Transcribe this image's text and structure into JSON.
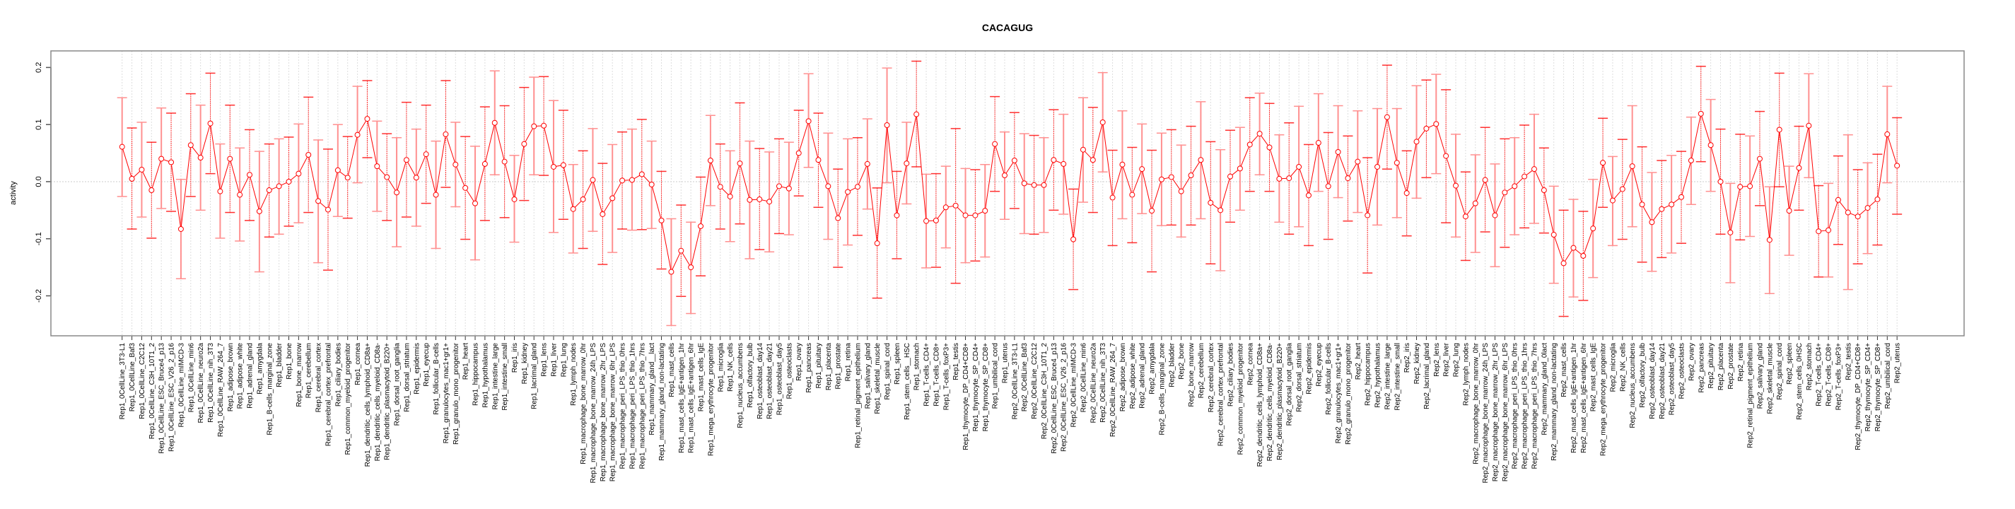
{
  "chart_data": {
    "type": "line",
    "title": "CACAGUG",
    "xlabel": "",
    "ylabel": "activity",
    "ylim": [
      -0.27,
      0.229
    ],
    "yticks": [
      -0.2,
      -0.1,
      0.0,
      0.1,
      0.2
    ],
    "ytick_labels": [
      "-0.2",
      "-0.1",
      "0.0",
      "0.1",
      "0.2"
    ],
    "grid": true,
    "series_color": "#ff0000",
    "categories": [
      "Rep1_0CellLine_3T3-L1",
      "Rep1_0CellLine_Baf3",
      "Rep1_0CellLine_C2C12",
      "Rep1_0CellLine_C3H_10T1_2",
      "Rep1_0CellLine_ESC_Bruce4_p13",
      "Rep1_0CellLine_ESC_V26_2_p16",
      "Rep1_0CellLine_mIMCD-3",
      "Rep1_0CellLine_min6",
      "Rep1_0CellLine_neuro2a",
      "Rep1_0CellLine_nih_3T3",
      "Rep1_0CellLine_RAW_264_7",
      "Rep1_adipose_brown",
      "Rep1_adipose_white",
      "Rep1_adrenal_gland",
      "Rep1_amygdala",
      "Rep1_B-cells_marginal_zone",
      "Rep1_bladder",
      "Rep1_bone",
      "Rep1_bone_marrow",
      "Rep1_cerebellum",
      "Rep1_cerebral_cortex",
      "Rep1_cerebral_cortex_prefrontal",
      "Rep1_ciliary_bodies",
      "Rep1_common_myeloid_progenitor",
      "Rep1_cornea",
      "Rep1_dendritic_cells_lymphoid_CD8a+",
      "Rep1_dendritic_cells_myeloid_CD8a-",
      "Rep1_dendritic_plasmacytoid_B220+",
      "Rep1_dorsal_root_ganglia",
      "Rep1_dorsal_striatum",
      "Rep1_epidermis",
      "Rep1_eyecup",
      "Rep1_follicular_B-cells",
      "Rep1_granulocytes_mac1+gr1+",
      "Rep1_granulo_mono_progenitor",
      "Rep1_heart",
      "Rep1_hippocampus",
      "Rep1_hypothalamus",
      "Rep1_intestine_large",
      "Rep1_intestine_small",
      "Rep1_iris",
      "Rep1_kidney",
      "Rep1_lacrimal_gland",
      "Rep1_lens",
      "Rep1_liver",
      "Rep1_lung",
      "Rep1_lymph_nodes",
      "Rep1_macrophage_bone_marrow_0hr",
      "Rep1_macrophage_bone_marrow_24h_LPS",
      "Rep1_macrophage_bone_marrow_2hr_LPS",
      "Rep1_macrophage_bone_marrow_6hr_LPS",
      "Rep1_macrophage_peri_LPS_thio_0hrs",
      "Rep1_macrophage_peri_LPS_thio_1hrs",
      "Rep1_macrophage_peri_LPS_thio_7hrs",
      "Rep1_mammary_gland__lact",
      "Rep1_mammary_gland_non-lactating",
      "Rep1_mast_cells",
      "Rep1_mast_cells_IgE+antigen_1hr",
      "Rep1_mast_cells_IgE+antigen_6hr",
      "Rep1_mast_cells_IgE",
      "Rep1_mega_erythrocyte_progenitor",
      "Rep1_microglia",
      "Rep1_NK_cells",
      "Rep1_nucleus_accumbens",
      "Rep1_olfactory_bulb",
      "Rep1_osteoblast_day14",
      "Rep1_osteoblast_day21",
      "Rep1_osteoblast_day5",
      "Rep1_osteoclasts",
      "Rep1_ovary",
      "Rep1_pancreas",
      "Rep1_pituitary",
      "Rep1_placenta",
      "Rep1_prostate",
      "Rep1_retina",
      "Rep1_retinal_pigment_epithelium",
      "Rep1_salivary_gland",
      "Rep1_skeletal_muscle",
      "Rep1_spinal_cord",
      "Rep1_spleen",
      "Rep1_stem_cells__HSC",
      "Rep1_stomach",
      "Rep1_T-cells_CD4+",
      "Rep1_T-cells_CD8+",
      "Rep1_T-cells_foxP3+",
      "Rep1_testis",
      "Rep1_thymocyte_DP_CD4+CD8+",
      "Rep1_thymocyte_SP_CD4+",
      "Rep1_thymocyte_SP_CD8+",
      "Rep1_umbilical_cord",
      "Rep1_uterus",
      "Rep2_0CellLine_3T3-L1",
      "Rep2_0CellLine_Baf3",
      "Rep2_0CellLine_C2C12",
      "Rep2_0CellLine_C3H_10T1_2",
      "Rep2_0CellLine_ESC_Bruce4_p13",
      "Rep2_0CellLine_ESC_V26_2_p16",
      "Rep2_0CellLine_mIMCD-3",
      "Rep2_0CellLine_min6",
      "Rep2_0CellLine_neuro2a",
      "Rep2_0CellLine_nih_3T3",
      "Rep2_0CellLine_RAW_264_7",
      "Rep2_adipose_brown",
      "Rep2_adipose_white",
      "Rep2_adrenal_gland",
      "Rep2_amygdala",
      "Rep2_B-cells_marginal_zone",
      "Rep2_bladder",
      "Rep2_bone",
      "Rep2_bone_marrow",
      "Rep2_cerebellum",
      "Rep2_cerebral_cortex",
      "Rep2_cerebral_cortex_prefrontal",
      "Rep2_ciliary_bodies",
      "Rep2_common_myeloid_progenitor",
      "Rep2_cornea",
      "Rep2_dendritic_cells_lymphoid_CD8a+",
      "Rep2_dendritic_cells_myeloid_CD8a-",
      "Rep2_dendritic_plasmacytoid_B220+",
      "Rep2_dorsal_root_ganglia",
      "Rep2_dorsal_striatum",
      "Rep2_epidermis",
      "Rep2_eyecup",
      "Rep2_follicular_B-cells",
      "Rep2_granulocytes_mac1+gr1+",
      "Rep2_granulo_mono_progenitor",
      "Rep2_heart",
      "Rep2_hippocampus",
      "Rep2_hypothalamus",
      "Rep2_intestine_large",
      "Rep2_intestine_small",
      "Rep2_iris",
      "Rep2_kidney",
      "Rep2_lacrimal_gland",
      "Rep2_lens",
      "Rep2_liver",
      "Rep2_lung",
      "Rep2_lymph_nodes",
      "Rep2_macrophage_bone_marrow_0hr",
      "Rep2_macrophage_bone_marrow_24h_LPS",
      "Rep2_macrophage_bone_marrow_2hr_LPS",
      "Rep2_macrophage_bone_marrow_6hr_LPS",
      "Rep2_macrophage_peri_LPS_thio_0hrs",
      "Rep2_macrophage_peri_LPS_thio_1hrs",
      "Rep2_macrophage_peri_LPS_thio_7hrs",
      "Rep2_mammary_gland_0lact",
      "Rep2_mammary_gland_non-lactating",
      "Rep2_mast_cells",
      "Rep2_mast_cells_IgE+antigen_1hr",
      "Rep2_mast_cells_IgE+antigen_6hr",
      "Rep2_mast_cells_IgE",
      "Rep2_mega_erythrocyte_progenitor",
      "Rep2_microglia",
      "Rep2_NK_cells",
      "Rep2_nucleus_accumbens",
      "Rep2_olfactory_bulb",
      "Rep2_osteoblast_day14",
      "Rep2_osteoblast_day21",
      "Rep2_osteoblast_day5",
      "Rep2_osteoclasts",
      "Rep2_ovary",
      "Rep2_pancreas",
      "Rep2_pituitary",
      "Rep2_placenta",
      "Rep2_prostate",
      "Rep2_retina",
      "Rep2_retinal_pigment_epithelium",
      "Rep2_salivary_gland",
      "Rep2_skeletal_muscle",
      "Rep2_spinal_cord",
      "Rep2_spleen",
      "Rep2_stem_cells_0HSC",
      "Rep2_stomach",
      "Rep2_T-cells_CD4+",
      "Rep2_T-cells_CD8+",
      "Rep2_T-cells_foxP3+",
      "Rep2_testis",
      "Rep2_thymocyte_DP_CD4+CD8+",
      "Rep2_thymocyte_SP_CD4+",
      "Rep2_thymocyte_SP_CD8+",
      "Rep2_umbilical_cord",
      "Rep2_uterus"
    ],
    "values": [
      0.061,
      0.005,
      0.021,
      -0.015,
      0.04,
      0.034,
      -0.083,
      0.064,
      0.042,
      0.102,
      -0.017,
      0.04,
      -0.023,
      0.012,
      -0.052,
      -0.015,
      -0.008,
      0.0,
      0.014,
      0.047,
      -0.034,
      -0.049,
      0.02,
      0.007,
      0.082,
      0.11,
      0.027,
      0.008,
      -0.019,
      0.038,
      0.007,
      0.048,
      -0.023,
      0.083,
      0.03,
      -0.011,
      -0.038,
      0.031,
      0.103,
      0.035,
      -0.031,
      0.066,
      0.097,
      0.098,
      0.026,
      0.029,
      -0.048,
      -0.031,
      0.003,
      -0.057,
      -0.029,
      0.002,
      0.003,
      0.013,
      -0.005,
      -0.068,
      -0.158,
      -0.121,
      -0.15,
      -0.078,
      0.037,
      -0.009,
      -0.026,
      0.032,
      -0.032,
      -0.031,
      -0.035,
      -0.008,
      -0.012,
      0.05,
      0.106,
      0.038,
      -0.008,
      -0.064,
      -0.018,
      -0.009,
      0.031,
      -0.108,
      0.099,
      -0.059,
      0.032,
      0.118,
      -0.069,
      -0.068,
      -0.045,
      -0.042,
      -0.059,
      -0.059,
      -0.051,
      0.066,
      0.011,
      0.037,
      -0.003,
      -0.006,
      -0.006,
      0.038,
      0.031,
      -0.101,
      0.056,
      0.038,
      0.104,
      -0.028,
      0.03,
      -0.023,
      0.022,
      -0.051,
      0.004,
      0.008,
      -0.017,
      0.011,
      0.038,
      -0.037,
      -0.05,
      0.009,
      0.023,
      0.065,
      0.084,
      0.06,
      0.005,
      0.006,
      0.026,
      -0.024,
      0.068,
      -0.008,
      0.052,
      0.006,
      0.035,
      -0.059,
      0.026,
      0.113,
      0.033,
      -0.02,
      0.07,
      0.093,
      0.101,
      0.045,
      -0.007,
      -0.061,
      -0.038,
      0.003,
      -0.059,
      -0.019,
      -0.008,
      0.009,
      0.022,
      -0.015,
      -0.093,
      -0.143,
      -0.116,
      -0.13,
      -0.082,
      0.033,
      -0.033,
      -0.013,
      0.027,
      -0.04,
      -0.071,
      -0.048,
      -0.04,
      -0.027,
      0.037,
      0.119,
      0.064,
      0.0,
      -0.089,
      -0.009,
      -0.008,
      0.04,
      -0.102,
      0.091,
      -0.051,
      0.024,
      0.098,
      -0.087,
      -0.085,
      -0.032,
      -0.054,
      -0.061,
      -0.046,
      -0.031,
      0.083,
      0.028
    ],
    "upper": [
      0.147,
      0.094,
      0.104,
      0.069,
      0.129,
      0.12,
      0.004,
      0.154,
      0.134,
      0.19,
      0.066,
      0.134,
      0.059,
      0.091,
      0.053,
      0.066,
      0.075,
      0.078,
      0.101,
      0.148,
      0.073,
      0.057,
      0.1,
      0.079,
      0.167,
      0.177,
      0.106,
      0.084,
      0.077,
      0.139,
      0.092,
      0.134,
      0.071,
      0.177,
      0.104,
      0.079,
      0.062,
      0.131,
      0.194,
      0.133,
      0.046,
      0.165,
      0.183,
      0.184,
      0.142,
      0.125,
      0.03,
      0.054,
      0.093,
      0.032,
      0.065,
      0.087,
      0.092,
      0.109,
      0.071,
      0.018,
      -0.065,
      -0.041,
      -0.071,
      0.008,
      0.116,
      0.066,
      0.054,
      0.138,
      0.071,
      0.058,
      0.052,
      0.075,
      0.069,
      0.125,
      0.189,
      0.12,
      0.085,
      0.022,
      0.075,
      0.077,
      0.11,
      -0.011,
      0.199,
      0.018,
      0.104,
      0.211,
      0.013,
      0.014,
      0.027,
      0.093,
      0.023,
      0.021,
      0.03,
      0.149,
      0.087,
      0.121,
      0.084,
      0.081,
      0.077,
      0.126,
      0.118,
      -0.013,
      0.147,
      0.13,
      0.191,
      0.055,
      0.124,
      0.06,
      0.101,
      0.055,
      0.085,
      0.091,
      0.064,
      0.097,
      0.14,
      0.07,
      0.056,
      0.09,
      0.095,
      0.147,
      0.155,
      0.137,
      0.082,
      0.103,
      0.132,
      0.065,
      0.154,
      0.086,
      0.133,
      0.08,
      0.124,
      0.042,
      0.128,
      0.204,
      0.128,
      0.054,
      0.168,
      0.178,
      0.188,
      0.161,
      0.083,
      0.017,
      0.047,
      0.095,
      0.031,
      0.075,
      0.077,
      0.099,
      0.118,
      0.059,
      -0.008,
      -0.05,
      -0.031,
      -0.052,
      0.004,
      0.111,
      0.044,
      0.074,
      0.133,
      0.061,
      0.016,
      0.037,
      0.046,
      0.053,
      0.113,
      0.202,
      0.144,
      0.092,
      -0.003,
      0.083,
      0.08,
      0.123,
      -0.009,
      0.19,
      0.027,
      0.097,
      0.189,
      -0.007,
      -0.003,
      0.045,
      0.082,
      0.021,
      0.033,
      0.048,
      0.167,
      0.112
    ],
    "lower": [
      -0.026,
      -0.083,
      -0.062,
      -0.099,
      -0.047,
      -0.052,
      -0.17,
      -0.026,
      -0.05,
      0.014,
      -0.099,
      -0.054,
      -0.104,
      -0.068,
      -0.158,
      -0.097,
      -0.092,
      -0.078,
      -0.072,
      -0.054,
      -0.142,
      -0.155,
      -0.061,
      -0.064,
      -0.002,
      0.042,
      -0.052,
      -0.068,
      -0.114,
      -0.062,
      -0.078,
      -0.038,
      -0.117,
      -0.01,
      -0.044,
      -0.101,
      -0.137,
      -0.068,
      0.012,
      -0.063,
      -0.106,
      -0.033,
      0.012,
      0.011,
      -0.089,
      -0.066,
      -0.125,
      -0.117,
      -0.087,
      -0.145,
      -0.124,
      -0.083,
      -0.085,
      -0.084,
      -0.082,
      -0.153,
      -0.252,
      -0.201,
      -0.231,
      -0.165,
      -0.042,
      -0.083,
      -0.105,
      -0.074,
      -0.135,
      -0.119,
      -0.123,
      -0.091,
      -0.093,
      -0.025,
      0.025,
      -0.045,
      -0.101,
      -0.15,
      -0.111,
      -0.094,
      -0.048,
      -0.204,
      -0.002,
      -0.135,
      -0.039,
      0.026,
      -0.151,
      -0.15,
      -0.116,
      -0.178,
      -0.142,
      -0.139,
      -0.132,
      -0.017,
      -0.066,
      -0.047,
      -0.091,
      -0.092,
      -0.089,
      -0.05,
      -0.057,
      -0.189,
      -0.036,
      -0.054,
      0.017,
      -0.112,
      -0.065,
      -0.107,
      -0.056,
      -0.158,
      -0.077,
      -0.076,
      -0.097,
      -0.076,
      -0.065,
      -0.144,
      -0.156,
      -0.071,
      -0.05,
      -0.017,
      0.012,
      -0.017,
      -0.071,
      -0.092,
      -0.079,
      -0.112,
      -0.017,
      -0.101,
      -0.028,
      -0.069,
      -0.054,
      -0.16,
      -0.076,
      0.022,
      -0.063,
      -0.095,
      -0.029,
      0.007,
      0.014,
      -0.072,
      -0.097,
      -0.138,
      -0.124,
      -0.088,
      -0.149,
      -0.115,
      -0.093,
      -0.081,
      -0.073,
      -0.09,
      -0.178,
      -0.236,
      -0.202,
      -0.208,
      -0.168,
      -0.045,
      -0.112,
      -0.101,
      -0.079,
      -0.141,
      -0.157,
      -0.133,
      -0.125,
      -0.108,
      -0.04,
      0.035,
      -0.017,
      -0.092,
      -0.177,
      -0.102,
      -0.096,
      -0.042,
      -0.196,
      -0.009,
      -0.129,
      -0.05,
      0.007,
      -0.167,
      -0.167,
      -0.11,
      -0.189,
      -0.144,
      -0.126,
      -0.111,
      -0.002,
      -0.057
    ]
  }
}
